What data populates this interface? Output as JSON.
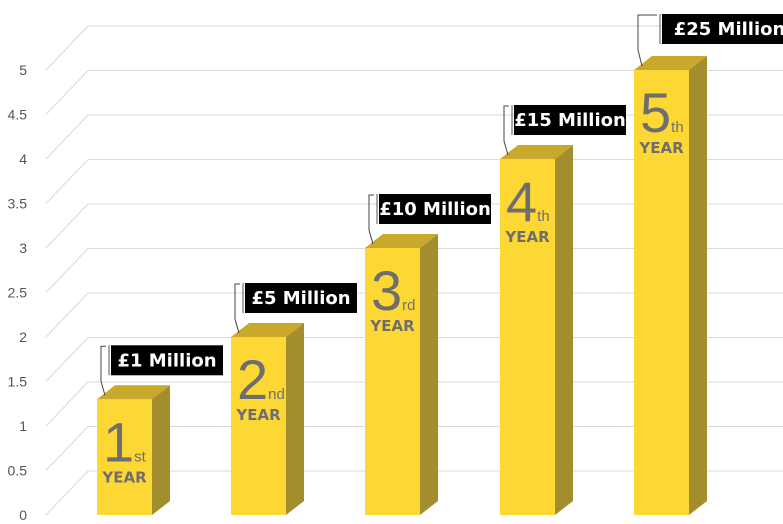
{
  "chart_data": {
    "type": "bar",
    "categories": [
      "1st YEAR",
      "2nd YEAR",
      "3rd YEAR",
      "4th YEAR",
      "5th YEAR"
    ],
    "values": [
      1.3,
      2.0,
      3.0,
      4.0,
      5.0
    ],
    "ylim": [
      0,
      5
    ],
    "yticks": [
      "0",
      "0.5",
      "1",
      "1.5",
      "2",
      "2.5",
      "3",
      "3.5",
      "4",
      "4.5",
      "5"
    ],
    "grid": true,
    "style": "3d",
    "bars": [
      {
        "number": "1",
        "suffix": "st",
        "word": "YEAR",
        "callout": "£1 Million"
      },
      {
        "number": "2",
        "suffix": "nd",
        "word": "YEAR",
        "callout": "£5 Million"
      },
      {
        "number": "3",
        "suffix": "rd",
        "word": "YEAR",
        "callout": "£10 Million"
      },
      {
        "number": "4",
        "suffix": "th",
        "word": "YEAR",
        "callout": "£15 Million"
      },
      {
        "number": "5",
        "suffix": "th",
        "word": "YEAR",
        "callout": "£25 Million"
      }
    ],
    "colors": {
      "bar_front": "#fdd835",
      "bar_side": "#a38d2c",
      "bar_top": "#c9a92b",
      "callout_bg": "#000000",
      "callout_text": "#ffffff",
      "gridline": "#d9d9d9",
      "label": "#6e6e6e"
    }
  }
}
